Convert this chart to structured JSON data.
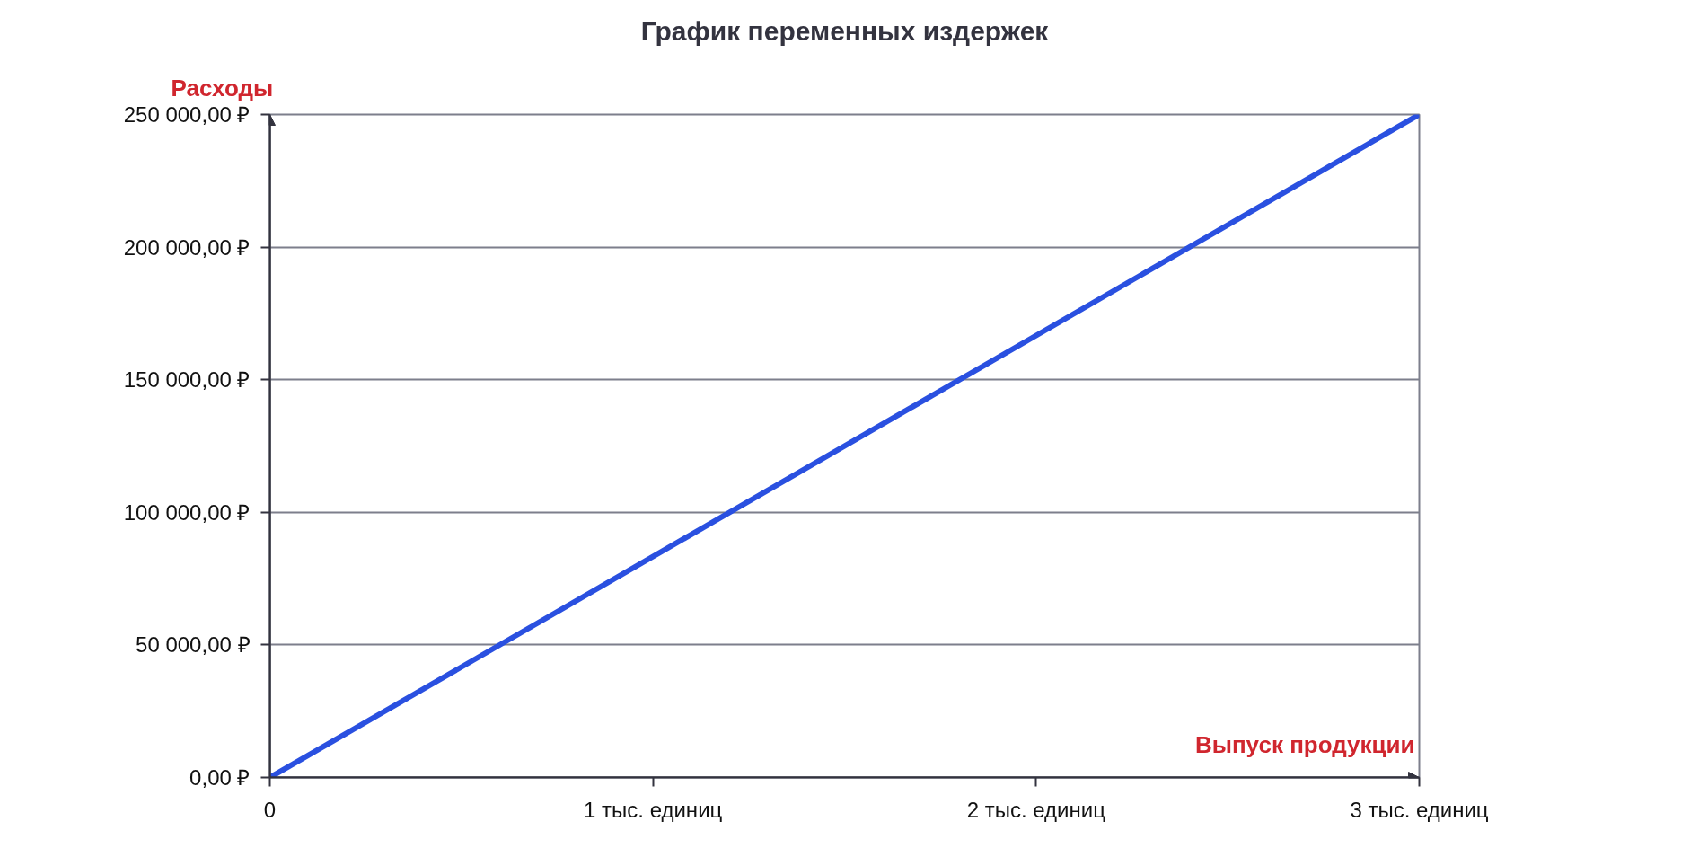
{
  "chart_data": {
    "type": "line",
    "title": "График переменных издержек",
    "xlabel": "Выпуск продукции",
    "ylabel": "Расходы",
    "x": [
      0,
      3
    ],
    "series": [
      {
        "color": "#2a50e0",
        "values": [
          0,
          250000
        ]
      }
    ],
    "xlim": [
      0,
      3
    ],
    "ylim": [
      0,
      250000
    ],
    "xticks": [
      0,
      {
        "value": 1,
        "label": "1 тыс. единиц"
      },
      {
        "value": 2,
        "label": "2 тыс. единиц"
      },
      {
        "value": 3,
        "label": "3 тыс. единиц"
      }
    ],
    "yticks": [
      {
        "value": 0,
        "label": "0,00 ₽"
      },
      {
        "value": 50000,
        "label": "50 000,00 ₽"
      },
      {
        "value": 100000,
        "label": "100 000,00 ₽"
      },
      {
        "value": 150000,
        "label": "150 000,00 ₽"
      },
      {
        "value": 200000,
        "label": "200 000,00 ₽"
      },
      {
        "value": 250000,
        "label": "250 000,00 ₽"
      }
    ],
    "grid": "y",
    "marker": "none",
    "line_style": "solid"
  }
}
